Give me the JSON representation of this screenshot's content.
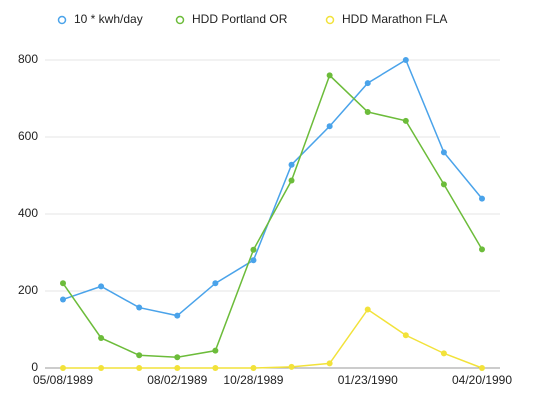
{
  "chart_data": {
    "type": "line",
    "categories": [
      "05/08/1989",
      null,
      null,
      "08/02/1989",
      null,
      "10/28/1989",
      null,
      null,
      "01/23/1990",
      null,
      null,
      "04/20/1990"
    ],
    "series": [
      {
        "name": "10 * kwh/day",
        "color": "#4aa3ea",
        "values": [
          178,
          212,
          157,
          136,
          220,
          280,
          528,
          628,
          740,
          800,
          560,
          440
        ]
      },
      {
        "name": "HDD Portland OR",
        "color": "#6cbc3a",
        "values": [
          220,
          78,
          33,
          28,
          45,
          307,
          487,
          760,
          665,
          642,
          477,
          308
        ]
      },
      {
        "name": "HDD Marathon FLA",
        "color": "#f2e23a",
        "values": [
          0,
          0,
          0,
          0,
          0,
          0,
          3,
          12,
          152,
          85,
          38,
          0
        ]
      }
    ],
    "ylim": [
      0,
      800
    ],
    "yticks": [
      0,
      200,
      400,
      600,
      800
    ],
    "grid": true
  }
}
